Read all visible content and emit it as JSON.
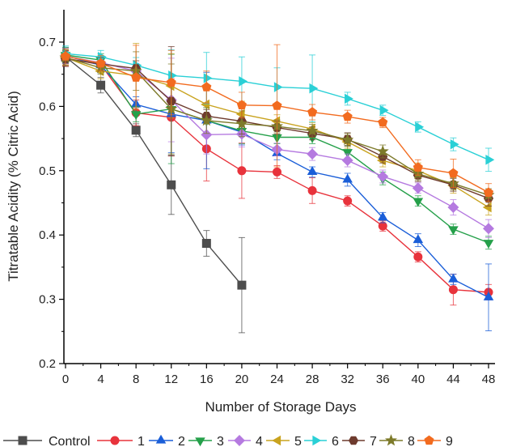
{
  "chart_data": {
    "type": "line",
    "title": "",
    "xlabel": "Number of Storage Days",
    "ylabel": "Titratable Acidity (% Citric Acid)",
    "x": [
      0,
      4,
      8,
      12,
      16,
      20,
      24,
      28,
      32,
      36,
      40,
      44,
      48
    ],
    "xlim": [
      0,
      48
    ],
    "ylim": [
      0.2,
      0.7
    ],
    "xticks": [
      "0",
      "4",
      "8",
      "12",
      "16",
      "20",
      "24",
      "28",
      "32",
      "36",
      "40",
      "44",
      "48"
    ],
    "yticks": [
      "0.2",
      "0.3",
      "0.4",
      "0.5",
      "0.6",
      "0.7"
    ],
    "legend_position": "bottom",
    "grid": false,
    "series": [
      {
        "name": "Control",
        "color": "#4d4d4d",
        "marker": "square",
        "values": [
          0.677,
          0.633,
          0.563,
          0.478,
          0.387,
          0.322,
          null,
          null,
          null,
          null,
          null,
          null,
          null
        ],
        "errors": [
          0.01,
          0.012,
          0.01,
          0.046,
          0.02,
          0.074,
          null,
          null,
          null,
          null,
          null,
          null,
          null
        ]
      },
      {
        "name": "1",
        "color": "#e8333c",
        "marker": "circle",
        "values": [
          0.675,
          0.665,
          0.59,
          0.583,
          0.534,
          0.5,
          0.498,
          0.469,
          0.453,
          0.414,
          0.366,
          0.315,
          0.311
        ],
        "errors": [
          0.012,
          0.01,
          0.02,
          0.06,
          0.05,
          0.043,
          0.01,
          0.02,
          0.008,
          0.008,
          0.008,
          0.024,
          0.012
        ]
      },
      {
        "name": "2",
        "color": "#1a5ed8",
        "marker": "triangle",
        "values": [
          0.679,
          0.664,
          0.603,
          0.588,
          0.578,
          0.56,
          0.527,
          0.498,
          0.486,
          0.427,
          0.392,
          0.331,
          0.303
        ],
        "errors": [
          0.012,
          0.012,
          0.012,
          0.06,
          0.075,
          0.02,
          0.01,
          0.008,
          0.01,
          0.008,
          0.01,
          0.008,
          0.052
        ]
      },
      {
        "name": "3",
        "color": "#25a04a",
        "marker": "triangle-down",
        "values": [
          0.68,
          0.672,
          0.588,
          0.596,
          0.578,
          0.562,
          0.552,
          0.552,
          0.529,
          0.488,
          0.453,
          0.409,
          0.388
        ],
        "errors": [
          0.012,
          0.01,
          0.012,
          0.085,
          0.02,
          0.02,
          0.01,
          0.01,
          0.01,
          0.01,
          0.008,
          0.008,
          0.01
        ]
      },
      {
        "name": "4",
        "color": "#b57ae0",
        "marker": "diamond",
        "values": [
          0.678,
          0.668,
          0.655,
          0.61,
          0.556,
          0.557,
          0.533,
          0.526,
          0.516,
          0.491,
          0.473,
          0.443,
          0.41
        ],
        "errors": [
          0.012,
          0.01,
          0.012,
          0.065,
          0.03,
          0.02,
          0.01,
          0.01,
          0.01,
          0.01,
          0.008,
          0.012,
          0.014
        ]
      },
      {
        "name": "5",
        "color": "#c9a31f",
        "marker": "triangle-left",
        "values": [
          0.676,
          0.655,
          0.648,
          0.632,
          0.603,
          0.588,
          0.577,
          0.565,
          0.545,
          0.516,
          0.5,
          0.477,
          0.443
        ],
        "errors": [
          0.012,
          0.012,
          0.05,
          0.05,
          0.03,
          0.02,
          0.01,
          0.01,
          0.01,
          0.01,
          0.012,
          0.012,
          0.012
        ]
      },
      {
        "name": "6",
        "color": "#2ad0d6",
        "marker": "triangle-right",
        "values": [
          0.682,
          0.677,
          0.664,
          0.648,
          0.644,
          0.639,
          0.63,
          0.628,
          0.612,
          0.594,
          0.568,
          0.541,
          0.517
        ],
        "errors": [
          0.012,
          0.01,
          0.012,
          0.04,
          0.04,
          0.038,
          0.03,
          0.052,
          0.01,
          0.008,
          0.008,
          0.01,
          0.018
        ]
      },
      {
        "name": "7",
        "color": "#6e3b2e",
        "marker": "hexagon",
        "values": [
          0.674,
          0.666,
          0.659,
          0.608,
          0.585,
          0.577,
          0.567,
          0.558,
          0.549,
          0.522,
          0.493,
          0.478,
          0.457
        ],
        "errors": [
          0.012,
          0.01,
          0.012,
          0.085,
          0.01,
          0.02,
          0.01,
          0.01,
          0.01,
          0.01,
          0.01,
          0.01,
          0.012
        ]
      },
      {
        "name": "8",
        "color": "#7d7a2a",
        "marker": "star",
        "values": [
          0.676,
          0.66,
          0.655,
          0.596,
          0.578,
          0.573,
          0.569,
          0.562,
          0.548,
          0.53,
          0.495,
          0.48,
          0.462
        ],
        "errors": [
          0.012,
          0.01,
          0.03,
          0.07,
          0.02,
          0.02,
          0.01,
          0.01,
          0.01,
          0.01,
          0.01,
          0.01,
          0.01
        ]
      },
      {
        "name": "9",
        "color": "#f26b1f",
        "marker": "pentagon",
        "values": [
          0.678,
          0.667,
          0.645,
          0.637,
          0.63,
          0.602,
          0.601,
          0.591,
          0.584,
          0.575,
          0.505,
          0.496,
          0.466
        ],
        "errors": [
          0.012,
          0.012,
          0.05,
          0.05,
          0.025,
          0.02,
          0.095,
          0.012,
          0.01,
          0.008,
          0.012,
          0.022,
          0.014
        ]
      }
    ]
  }
}
